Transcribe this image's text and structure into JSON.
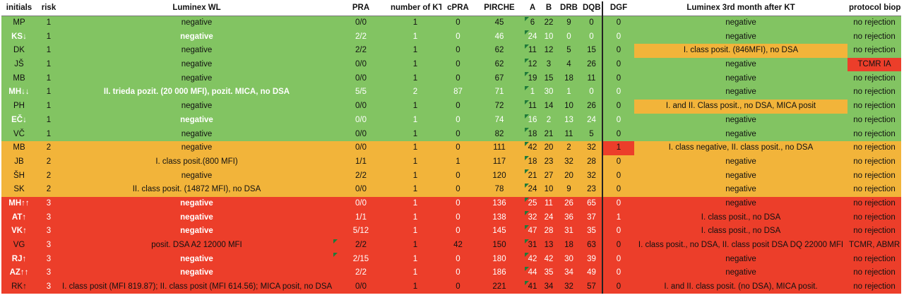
{
  "headers": [
    "initials",
    "risk",
    "Luminex WL",
    "PRA",
    "number of KT",
    "cPRA",
    "PIRCHE",
    "A",
    "B",
    "DRB",
    "DQB",
    "DGF",
    "Luminex 3rd month after KT",
    "protocol biopsy"
  ],
  "rows": [
    {
      "group": "green",
      "cells": [
        "MP",
        "1",
        "negative",
        "0/0",
        "1",
        "0",
        "45",
        "6",
        "22",
        "9",
        "0",
        "0",
        "negative",
        "no rejection"
      ]
    },
    {
      "group": "green",
      "cells": [
        "KS↓",
        "1",
        "negative",
        "2/2",
        "1",
        "0",
        "46",
        "24",
        "10",
        "0",
        "0",
        "0",
        "negative",
        "no rejection"
      ]
    },
    {
      "group": "green",
      "cells": [
        "DK",
        "1",
        "negative",
        "2/2",
        "1",
        "0",
        "62",
        "11",
        "12",
        "5",
        "15",
        "0",
        "I. class posit.  (846MFI), no DSA",
        "no rejection"
      ]
    },
    {
      "group": "green",
      "cells": [
        "JŠ",
        "1",
        "negative",
        "0/0",
        "1",
        "0",
        "62",
        "12",
        "3",
        "4",
        "26",
        "0",
        "negative",
        "TCMR IA"
      ]
    },
    {
      "group": "green",
      "cells": [
        "MB",
        "1",
        "negative",
        "0/0",
        "1",
        "0",
        "67",
        "19",
        "15",
        "18",
        "11",
        "0",
        "negative",
        "no rejection"
      ]
    },
    {
      "group": "green",
      "cells": [
        "MH↓↓",
        "1",
        "II. trieda pozit. (20 000 MFI), pozit. MICA, no DSA",
        "5/5",
        "2",
        "87",
        "71",
        "1",
        "30",
        "1",
        "0",
        "0",
        "negative",
        "no rejection"
      ]
    },
    {
      "group": "green",
      "cells": [
        "PH",
        "1",
        "negative",
        "0/0",
        "1",
        "0",
        "72",
        "11",
        "14",
        "10",
        "26",
        "0",
        "I. and II. Class posit., no DSA, MICA posit",
        "no rejection"
      ]
    },
    {
      "group": "green",
      "cells": [
        "EČ↓",
        "1",
        "negative",
        "0/0",
        "1",
        "0",
        "74",
        "16",
        "2",
        "13",
        "24",
        "0",
        "negative",
        "no rejection"
      ]
    },
    {
      "group": "green",
      "cells": [
        "VČ",
        "1",
        "negative",
        "0/0",
        "1",
        "0",
        "82",
        "18",
        "21",
        "11",
        "5",
        "0",
        "negative",
        "no rejection"
      ]
    },
    {
      "group": "orange",
      "cells": [
        "MB",
        "2",
        "negative",
        "0/0",
        "1",
        "0",
        "111",
        "42",
        "20",
        "2",
        "32",
        "1",
        "I. class negative, II. class posit., no DSA",
        "no rejection"
      ]
    },
    {
      "group": "orange",
      "cells": [
        "JB",
        "2",
        "I. class posit.(800 MFI)",
        "1/1",
        "1",
        "1",
        "117",
        "18",
        "23",
        "32",
        "28",
        "0",
        "negative",
        "no rejection"
      ]
    },
    {
      "group": "orange",
      "cells": [
        "ŠH",
        "2",
        "negative",
        "2/2",
        "1",
        "0",
        "120",
        "21",
        "27",
        "20",
        "32",
        "0",
        "negative",
        "no rejection"
      ]
    },
    {
      "group": "orange",
      "cells": [
        "SK",
        "2",
        "II. class posit. (14872 MFI), no DSA",
        "0/0",
        "1",
        "0",
        "78",
        "24",
        "10",
        "9",
        "23",
        "0",
        "negative",
        "no rejection"
      ]
    },
    {
      "group": "red",
      "cells": [
        "MH↑↑",
        "3",
        "negative",
        "0/0",
        "1",
        "0",
        "136",
        "25",
        "11",
        "26",
        "65",
        "0",
        "negative",
        "no rejection"
      ]
    },
    {
      "group": "red",
      "cells": [
        "AT↑",
        "3",
        "negative",
        "1/1",
        "1",
        "0",
        "138",
        "32",
        "24",
        "36",
        "37",
        "1",
        "I. class posit., no DSA",
        "no rejection"
      ]
    },
    {
      "group": "red",
      "cells": [
        "VK↑",
        "3",
        "negative",
        "5/12",
        "1",
        "0",
        "145",
        "47",
        "28",
        "31",
        "35",
        "0",
        "I. class posit., no DSA",
        "no rejection"
      ]
    },
    {
      "group": "red",
      "cells": [
        "VG",
        "3",
        "posit. DSA A2 12000 MFI",
        "2/2",
        "1",
        "42",
        "150",
        "31",
        "13",
        "18",
        "63",
        "0",
        "I. class posit., no DSA, II. class posit  DSA DQ 22000 MFI",
        "TCMR, ABMR"
      ]
    },
    {
      "group": "red",
      "cells": [
        "RJ↑",
        "3",
        "negative",
        "2/15",
        "1",
        "0",
        "180",
        "42",
        "42",
        "30",
        "39",
        "0",
        "negative",
        "no rejection"
      ]
    },
    {
      "group": "red",
      "cells": [
        "AZ↑↑",
        "3",
        "negative",
        "2/2",
        "1",
        "0",
        "186",
        "44",
        "35",
        "34",
        "49",
        "0",
        "negative",
        "no rejection"
      ]
    },
    {
      "group": "red",
      "cells": [
        "RK↑",
        "3",
        "I. class posit (MFI 819.87); II. class posit (MFI 614.56); MICA posit, no DSA",
        "0/0",
        "1",
        "0",
        "221",
        "41",
        "34",
        "32",
        "57",
        "0",
        "I. and II. class posit.  (no DSA), MICA posit.",
        "no rejection"
      ]
    }
  ]
}
